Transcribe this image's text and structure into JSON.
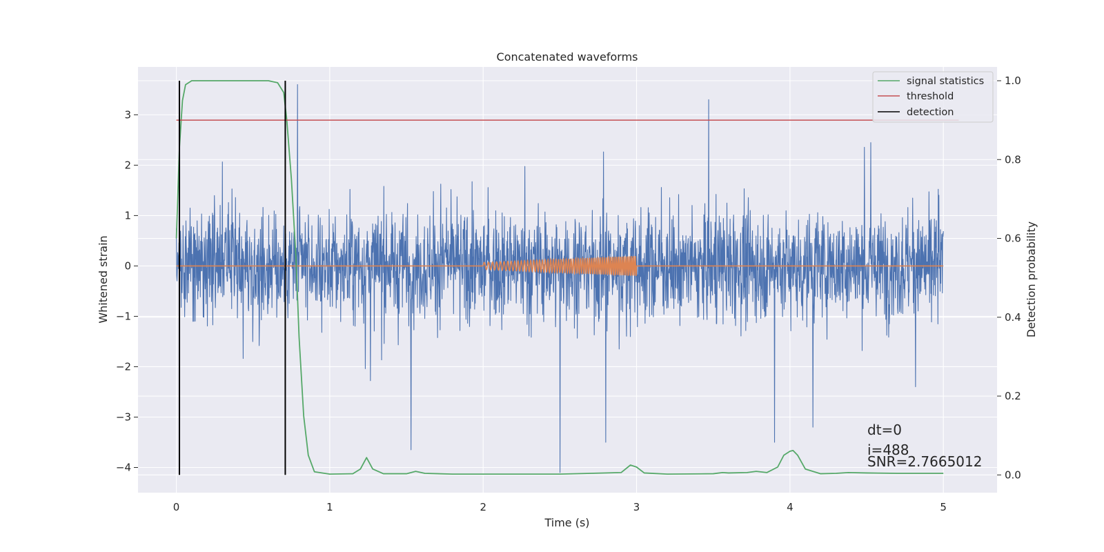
{
  "chart_data": {
    "type": "line",
    "title": "Concatenated waveforms",
    "xlabel": "Time (s)",
    "ylabel": "Whitened strain",
    "y2label": "Detection probability",
    "xlim": [
      -0.25,
      5.35
    ],
    "ylim": [
      -4.5,
      3.95
    ],
    "y2lim": [
      -0.045,
      1.035
    ],
    "x_ticks": [
      0,
      1,
      2,
      3,
      4,
      5
    ],
    "y_ticks": [
      -4,
      -3,
      -2,
      -1,
      0,
      1,
      2,
      3
    ],
    "y2_ticks": [
      0.0,
      0.2,
      0.4,
      0.6,
      0.8,
      1.0
    ],
    "x_tick_labels": [
      "0",
      "1",
      "2",
      "3",
      "4",
      "5"
    ],
    "y_tick_labels": [
      "−4",
      "−3",
      "−2",
      "−1",
      "0",
      "1",
      "2",
      "3"
    ],
    "y2_tick_labels": [
      "0.0",
      "0.2",
      "0.4",
      "0.6",
      "0.8",
      "1.0"
    ],
    "grid": true,
    "legend_position": "top-right",
    "colors": {
      "background": "#EAEAF2",
      "grid": "#FFFFFF",
      "strain": "#4C72B0",
      "injected": "#DD8452",
      "signal_statistics": "#55A868",
      "threshold": "#C44E52",
      "detection": "#000000"
    },
    "series": [
      {
        "name": "whitened strain (noise)",
        "axis": "left",
        "color": "#4C72B0",
        "x_range": [
          0,
          5
        ],
        "approx_envelope": {
          "typical_max": 2.0,
          "typical_min": -2.3
        },
        "notable_spikes": [
          {
            "x": 0.79,
            "y": 3.6
          },
          {
            "x": 3.47,
            "y": 3.3
          },
          {
            "x": 2.5,
            "y": -4.1
          },
          {
            "x": 1.53,
            "y": -3.65
          },
          {
            "x": 3.9,
            "y": -3.5
          },
          {
            "x": 2.8,
            "y": -3.5
          },
          {
            "x": 4.15,
            "y": -3.2
          }
        ]
      },
      {
        "name": "injected waveform",
        "axis": "left",
        "color": "#DD8452",
        "x_range": [
          2.0,
          3.0
        ],
        "amplitude_start": 0.07,
        "amplitude_end": 0.2
      },
      {
        "name": "signal statistics",
        "axis": "right",
        "color": "#55A868",
        "x": [
          0.0,
          0.02,
          0.04,
          0.06,
          0.1,
          0.2,
          0.4,
          0.6,
          0.66,
          0.7,
          0.72,
          0.75,
          0.78,
          0.8,
          0.83,
          0.86,
          0.9,
          1.0,
          1.15,
          1.2,
          1.24,
          1.28,
          1.35,
          1.5,
          1.56,
          1.62,
          1.8,
          2.0,
          2.5,
          2.9,
          2.96,
          3.0,
          3.05,
          3.2,
          3.5,
          3.56,
          3.6,
          3.72,
          3.78,
          3.85,
          3.92,
          3.96,
          4.0,
          4.02,
          4.05,
          4.1,
          4.2,
          4.3,
          4.38,
          4.5,
          4.7,
          5.0
        ],
        "values": [
          0.6,
          0.83,
          0.95,
          0.99,
          1.0,
          1.0,
          1.0,
          1.0,
          0.995,
          0.97,
          0.9,
          0.75,
          0.55,
          0.35,
          0.15,
          0.05,
          0.008,
          0.002,
          0.003,
          0.015,
          0.044,
          0.015,
          0.003,
          0.003,
          0.009,
          0.004,
          0.002,
          0.002,
          0.002,
          0.006,
          0.025,
          0.02,
          0.005,
          0.002,
          0.003,
          0.006,
          0.005,
          0.006,
          0.009,
          0.006,
          0.02,
          0.05,
          0.06,
          0.062,
          0.05,
          0.015,
          0.003,
          0.004,
          0.006,
          0.005,
          0.004,
          0.004
        ]
      },
      {
        "name": "threshold",
        "axis": "right",
        "color": "#C44E52",
        "x": [
          0,
          5.1
        ],
        "values": [
          0.9,
          0.9
        ]
      },
      {
        "name": "detection",
        "axis": "right",
        "color": "#000000",
        "type": "vlines",
        "x": [
          0.02,
          0.71
        ],
        "ymin": 0.0,
        "ymax": 1.0
      }
    ],
    "legend": [
      "signal statistics",
      "threshold",
      "detection"
    ],
    "annotations": [
      "dt=0",
      "i=488",
      "SNR=2.7665012"
    ]
  }
}
